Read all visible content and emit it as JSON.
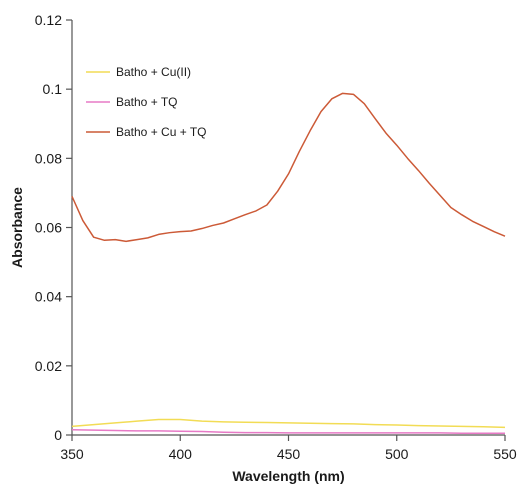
{
  "chart_data": {
    "type": "line",
    "title": "",
    "xlabel": "Wavelength (nm)",
    "ylabel": "Absorbance",
    "xlim": [
      350,
      550
    ],
    "ylim": [
      0,
      0.12
    ],
    "xticks": [
      350,
      400,
      450,
      500,
      550
    ],
    "xtick_labels": [
      "350",
      "400",
      "450",
      "500",
      "550"
    ],
    "yticks": [
      0,
      0.02,
      0.04,
      0.06,
      0.08,
      0.1,
      0.12
    ],
    "ytick_labels": [
      "0",
      "0.02",
      "0.04",
      "0.06",
      "0.08",
      "0.1",
      "0.12"
    ],
    "grid": false,
    "legend_position": "top-left",
    "series": [
      {
        "name": "Batho + Cu(II)",
        "color": "#f2dc55",
        "x": [
          350,
          360,
          370,
          380,
          390,
          400,
          410,
          420,
          430,
          440,
          450,
          460,
          470,
          480,
          490,
          500,
          510,
          520,
          530,
          540,
          550
        ],
        "y": [
          0.0025,
          0.003,
          0.0035,
          0.004,
          0.0045,
          0.0045,
          0.004,
          0.0038,
          0.0037,
          0.0036,
          0.0035,
          0.0034,
          0.0033,
          0.0032,
          0.003,
          0.0029,
          0.0027,
          0.0026,
          0.0025,
          0.0024,
          0.0022
        ]
      },
      {
        "name": "Batho + TQ",
        "color": "#e77ac6",
        "x": [
          350,
          360,
          370,
          380,
          390,
          400,
          410,
          420,
          430,
          440,
          450,
          460,
          470,
          480,
          490,
          500,
          510,
          520,
          530,
          540,
          550
        ],
        "y": [
          0.0015,
          0.0014,
          0.0013,
          0.0012,
          0.0012,
          0.0011,
          0.001,
          0.0008,
          0.0007,
          0.0007,
          0.0006,
          0.0006,
          0.0006,
          0.0006,
          0.0006,
          0.0006,
          0.0006,
          0.0006,
          0.0005,
          0.0005,
          0.0005
        ]
      },
      {
        "name": "Batho + Cu + TQ",
        "color": "#cc5a37",
        "x": [
          350,
          355,
          360,
          365,
          370,
          375,
          380,
          385,
          390,
          395,
          400,
          405,
          410,
          415,
          420,
          425,
          430,
          435,
          440,
          445,
          450,
          455,
          460,
          465,
          470,
          475,
          480,
          485,
          490,
          495,
          500,
          505,
          510,
          515,
          520,
          525,
          530,
          535,
          540,
          545,
          550
        ],
        "y": [
          0.069,
          0.062,
          0.0572,
          0.0563,
          0.0565,
          0.056,
          0.0565,
          0.057,
          0.058,
          0.0585,
          0.0588,
          0.059,
          0.0597,
          0.0606,
          0.0613,
          0.0625,
          0.0637,
          0.0648,
          0.0665,
          0.0705,
          0.0755,
          0.082,
          0.088,
          0.0935,
          0.0972,
          0.0988,
          0.0985,
          0.0958,
          0.0915,
          0.0873,
          0.0838,
          0.08,
          0.0765,
          0.0728,
          0.0693,
          0.0658,
          0.0637,
          0.0618,
          0.0603,
          0.0588,
          0.0575
        ]
      }
    ]
  }
}
